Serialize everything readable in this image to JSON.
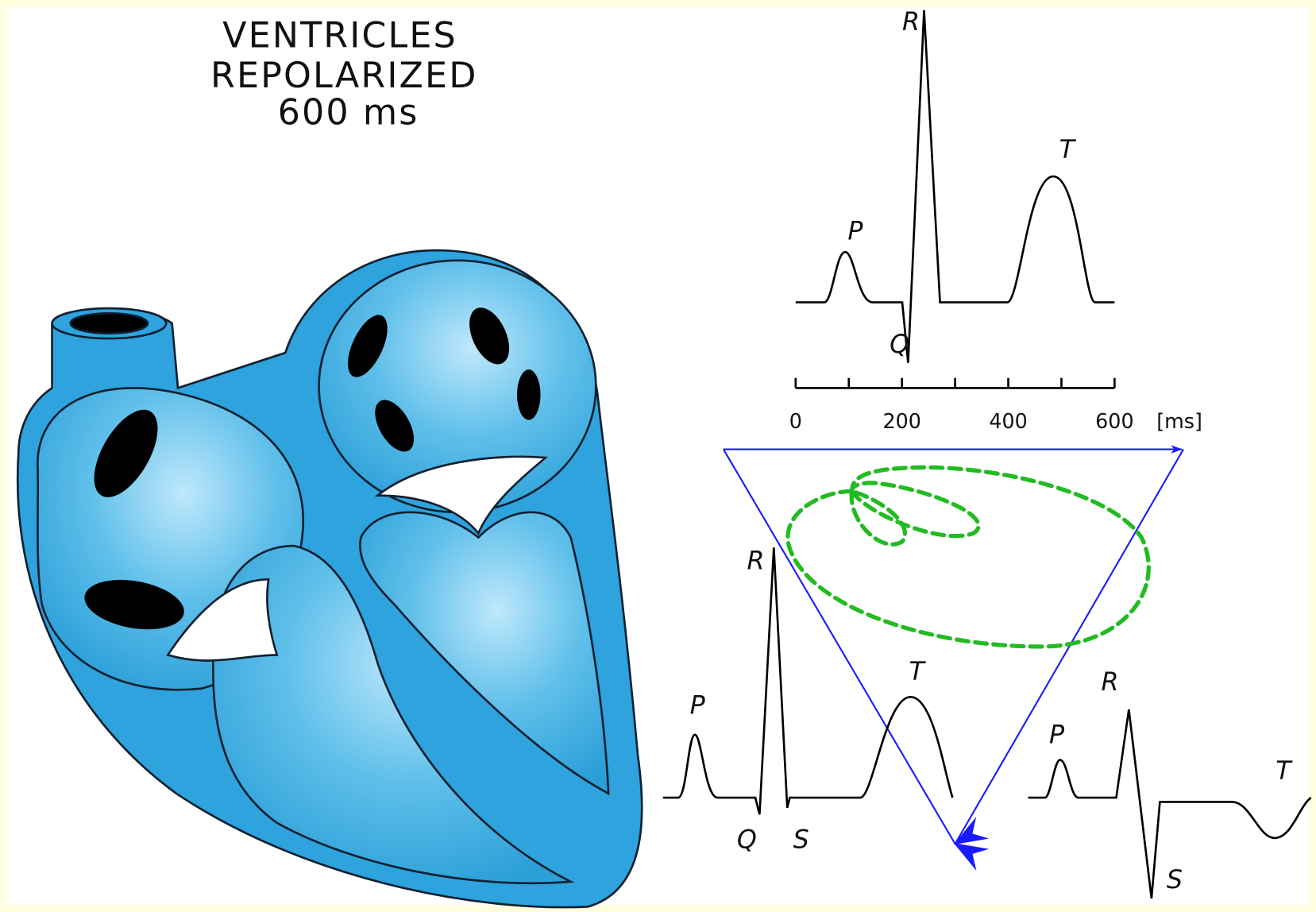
{
  "title": {
    "lines": [
      "VENTRICLES",
      "REPOLARIZED",
      "600 ms"
    ]
  },
  "top_ecg": {
    "labels": {
      "p": "P",
      "q": "Q",
      "r": "R",
      "t": "T"
    }
  },
  "time_axis": {
    "ticks": [
      0,
      200,
      400,
      600
    ],
    "unit": "[ms]"
  },
  "lead_left": {
    "labels": {
      "p": "P",
      "q": "Q",
      "r": "R",
      "s": "S",
      "t": "T"
    }
  },
  "lead_right": {
    "labels": {
      "p": "P",
      "r": "R",
      "s": "S",
      "t": "T"
    }
  }
}
